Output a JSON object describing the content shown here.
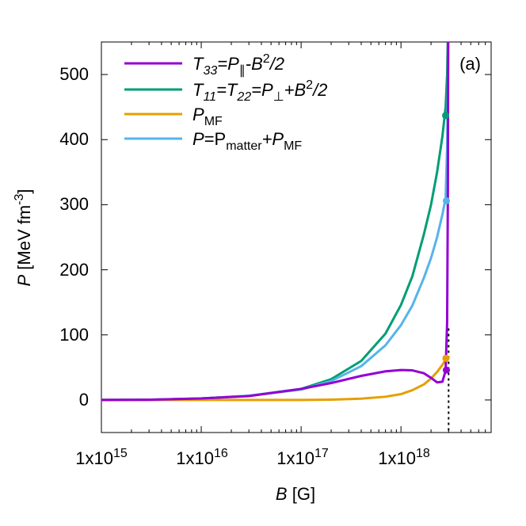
{
  "chart_data": {
    "type": "line",
    "panel_label": "(a)",
    "xlabel": "G",
    "xlabel_var": "B",
    "ylabel_var": "P",
    "ylabel_unit": "MeV fm",
    "ylabel_exp": "-3",
    "x_scale": "log",
    "xlim": [
      1000000000000000.0,
      8e+18
    ],
    "ylim": [
      -50,
      550
    ],
    "x_tick_mantissa": "1x10",
    "x_tick_exponents": [
      "15",
      "16",
      "17",
      "18"
    ],
    "y_ticks": [
      0,
      100,
      200,
      300,
      400,
      500
    ],
    "legend_position": "top-left",
    "legend_labels": {
      "t33": {
        "v1": "T",
        "s1": "33",
        "m1": "=P",
        "s2": "∥",
        "m2": "-B",
        "p1": "2",
        "m3": "/2"
      },
      "t11": {
        "v1": "T",
        "s1": "11",
        "m1": "=T",
        "s2": "22",
        "m2": "=P",
        "s3": "⊥",
        "m3": "+B",
        "p1": "2",
        "m4": "/2"
      },
      "pmf": {
        "v1": "P",
        "s1": "MF"
      },
      "ptot": {
        "v1": "P",
        "m1": "=P",
        "s1": "matter",
        "m2": "+P",
        "s2": "MF"
      }
    },
    "series": [
      {
        "key": "t33",
        "color": "#9400d3",
        "x": [
          1000000000000000.0,
          3000000000000000.0,
          1e+16,
          3e+16,
          1e+17,
          2e+17,
          4e+17,
          7e+17,
          1e+18,
          1.3e+18,
          1.7e+18,
          2e+18,
          2.3e+18,
          2.6e+18,
          2.8e+18,
          2.9e+18,
          2.95e+18,
          2.97e+18
        ],
        "y": [
          0,
          0.3,
          2.4,
          6,
          17,
          26,
          37,
          44,
          46,
          45.5,
          41,
          34,
          27,
          28,
          45,
          120,
          320,
          560
        ]
      },
      {
        "key": "t11",
        "color": "#009e73",
        "x": [
          1000000000000000.0,
          3000000000000000.0,
          1e+16,
          3e+16,
          1e+17,
          2e+17,
          4e+17,
          7e+17,
          1e+18,
          1.3e+18,
          1.7e+18,
          2e+18,
          2.3e+18,
          2.6e+18,
          2.8e+18,
          2.9e+18,
          2.95e+18
        ],
        "y": [
          0,
          0.3,
          2.4,
          6.5,
          17,
          32,
          60,
          102,
          146,
          190,
          255,
          300,
          350,
          405,
          450,
          500,
          560
        ]
      },
      {
        "key": "pmf",
        "color": "#e69f00",
        "x": [
          1000000000000000.0,
          1e+16,
          1e+17,
          2e+17,
          4e+17,
          7e+17,
          1e+18,
          1.3e+18,
          1.7e+18,
          2e+18,
          2.3e+18,
          2.6e+18,
          2.8e+18,
          2.9e+18
        ],
        "y": [
          0,
          0,
          0,
          0.5,
          2,
          5,
          9,
          15,
          24,
          33,
          43,
          54,
          62,
          67
        ]
      },
      {
        "key": "ptot",
        "color": "#56b4e9",
        "x": [
          1000000000000000.0,
          3000000000000000.0,
          1e+16,
          3e+16,
          1e+17,
          2e+17,
          4e+17,
          7e+17,
          1e+18,
          1.3e+18,
          1.7e+18,
          2e+18,
          2.3e+18,
          2.6e+18,
          2.8e+18,
          2.9e+18,
          2.95e+18,
          2.98e+18
        ],
        "y": [
          0,
          0.3,
          2.4,
          6.5,
          16,
          29,
          52,
          84,
          115,
          145,
          188,
          218,
          250,
          285,
          310,
          390,
          480,
          560
        ]
      }
    ],
    "markers": [
      {
        "series": "t11",
        "x": 2.8e+18,
        "y": 437
      },
      {
        "series": "ptot",
        "x": 2.85e+18,
        "y": 306
      },
      {
        "series": "pmf",
        "x": 2.82e+18,
        "y": 64
      },
      {
        "series": "t33",
        "x": 2.85e+18,
        "y": 46
      }
    ],
    "reference_line": {
      "x": 3e+18,
      "style": "dotted",
      "color": "#000000"
    }
  }
}
